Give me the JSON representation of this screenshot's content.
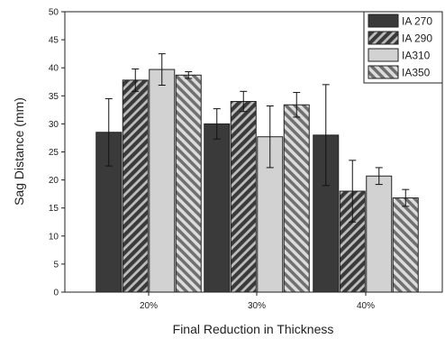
{
  "chart_data": {
    "type": "bar",
    "xlabel": "Final Reduction in Thickness",
    "ylabel": "Sag Distance (mm)",
    "ylim": [
      0,
      50
    ],
    "yticks": [
      0,
      5,
      10,
      15,
      20,
      25,
      30,
      35,
      40,
      45,
      50
    ],
    "categories": [
      "20%",
      "30%",
      "40%"
    ],
    "legend_position": "top-right",
    "grid": false,
    "series": [
      {
        "name": "IA 270",
        "values": [
          28.5,
          30.0,
          28.0
        ],
        "errors": [
          6.0,
          2.7,
          9.0
        ],
        "fill": "dark-solid",
        "color": "#3a3a3a"
      },
      {
        "name": "IA 290",
        "values": [
          37.8,
          34.0,
          18.0
        ],
        "errors": [
          2.0,
          1.8,
          5.5
        ],
        "fill": "diagonal-hatch",
        "color": "#3a3a3a"
      },
      {
        "name": "IA310",
        "values": [
          39.7,
          27.7,
          20.7
        ],
        "errors": [
          2.8,
          5.5,
          1.5
        ],
        "fill": "light-solid",
        "color": "#d2d2d2"
      },
      {
        "name": "IA350",
        "values": [
          38.7,
          33.4,
          16.8
        ],
        "errors": [
          0.6,
          2.2,
          1.5
        ],
        "fill": "back-diagonal-hatch",
        "color": "#8a8a8a"
      }
    ]
  }
}
